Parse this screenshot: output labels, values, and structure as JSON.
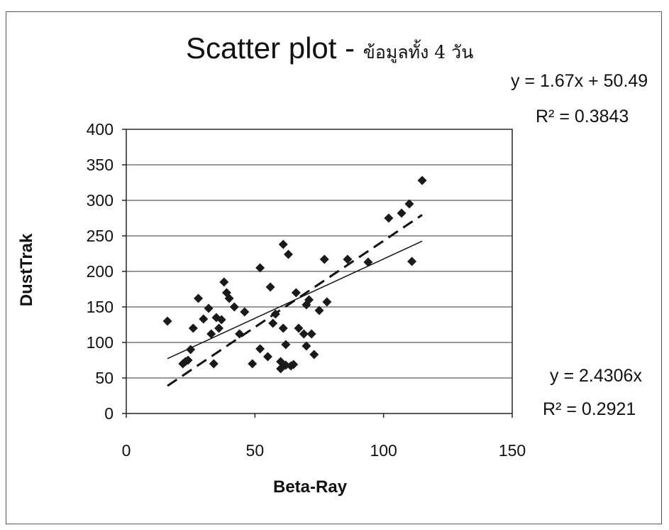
{
  "chart_data": {
    "type": "scatter",
    "title": "Scatter plot - ",
    "title_suffix": "ข้อมูลทั้ง 4 วัน",
    "xlabel": "Beta-Ray",
    "ylabel": "DustTrak",
    "xlim": [
      0,
      150
    ],
    "ylim": [
      0,
      400
    ],
    "xticks": [
      "0",
      "50",
      "100",
      "150"
    ],
    "yticks": [
      "0",
      "50",
      "100",
      "150",
      "200",
      "250",
      "300",
      "350",
      "400"
    ],
    "grid": "horizontal",
    "legend": "none",
    "marker_color": "#1a1a1a",
    "points": [
      [
        16,
        130
      ],
      [
        22,
        70
      ],
      [
        23,
        73
      ],
      [
        24,
        75
      ],
      [
        25,
        90
      ],
      [
        26,
        120
      ],
      [
        28,
        162
      ],
      [
        30,
        133
      ],
      [
        32,
        148
      ],
      [
        33,
        112
      ],
      [
        34,
        70
      ],
      [
        35,
        135
      ],
      [
        36,
        120
      ],
      [
        37,
        132
      ],
      [
        38,
        185
      ],
      [
        39,
        170
      ],
      [
        40,
        162
      ],
      [
        42,
        150
      ],
      [
        44,
        112
      ],
      [
        46,
        143
      ],
      [
        49,
        70
      ],
      [
        52,
        205
      ],
      [
        52,
        91
      ],
      [
        55,
        80
      ],
      [
        56,
        178
      ],
      [
        57,
        127
      ],
      [
        58,
        140
      ],
      [
        60,
        63
      ],
      [
        60,
        73
      ],
      [
        61,
        238
      ],
      [
        61,
        120
      ],
      [
        62,
        97
      ],
      [
        62,
        68
      ],
      [
        63,
        224
      ],
      [
        64,
        67
      ],
      [
        65,
        69
      ],
      [
        66,
        170
      ],
      [
        67,
        120
      ],
      [
        69,
        112
      ],
      [
        70,
        153
      ],
      [
        70,
        95
      ],
      [
        71,
        160
      ],
      [
        72,
        112
      ],
      [
        73,
        83
      ],
      [
        75,
        145
      ],
      [
        77,
        217
      ],
      [
        78,
        157
      ],
      [
        86,
        217
      ],
      [
        94,
        213
      ],
      [
        102,
        275
      ],
      [
        107,
        282
      ],
      [
        110,
        295
      ],
      [
        111,
        214
      ],
      [
        115,
        328
      ]
    ],
    "trendlines": [
      {
        "label": "y = 1.67x + 50.49",
        "r2": "R² = 0.3843",
        "style": "solid",
        "slope": 1.67,
        "intercept": 50.49,
        "x_range": [
          16,
          115
        ]
      },
      {
        "label": "y = 2.4306x",
        "r2": "R² = 0.2921",
        "style": "dashed",
        "slope": 2.4306,
        "intercept": 0,
        "x_range": [
          16,
          115
        ]
      }
    ]
  }
}
